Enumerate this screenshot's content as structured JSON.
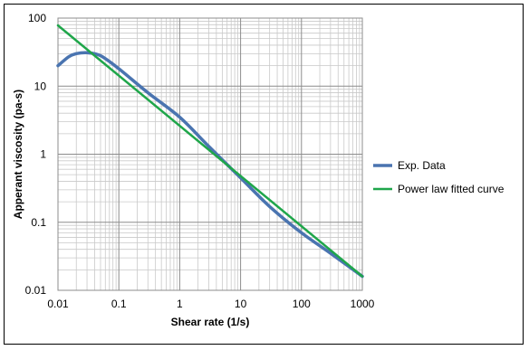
{
  "chart_data": {
    "type": "line",
    "title": "",
    "xlabel": "Shear rate (1/s)",
    "ylabel": "Apperant viscosity (pa-s)",
    "x_scale": "log",
    "y_scale": "log",
    "xlim": [
      0.01,
      1000
    ],
    "ylim": [
      0.01,
      100
    ],
    "x_ticks": [
      "0.01",
      "0.1",
      "1",
      "10",
      "100",
      "1000"
    ],
    "y_ticks": [
      "0.01",
      "0.1",
      "1",
      "10",
      "100"
    ],
    "grid": true,
    "legend_position": "right",
    "series": [
      {
        "name": "Exp. Data",
        "color": "#4a74b0",
        "x": [
          0.01,
          0.015,
          0.02,
          0.03,
          0.05,
          0.1,
          0.3,
          1,
          3,
          10,
          30,
          100,
          300,
          1000
        ],
        "y": [
          20,
          27,
          30,
          31,
          28,
          18,
          8,
          3.5,
          1.3,
          0.45,
          0.17,
          0.07,
          0.035,
          0.016
        ]
      },
      {
        "name": "Power law fitted curve",
        "color": "#1fa64a",
        "x": [
          0.01,
          1000
        ],
        "y": [
          78,
          0.016
        ]
      }
    ]
  }
}
